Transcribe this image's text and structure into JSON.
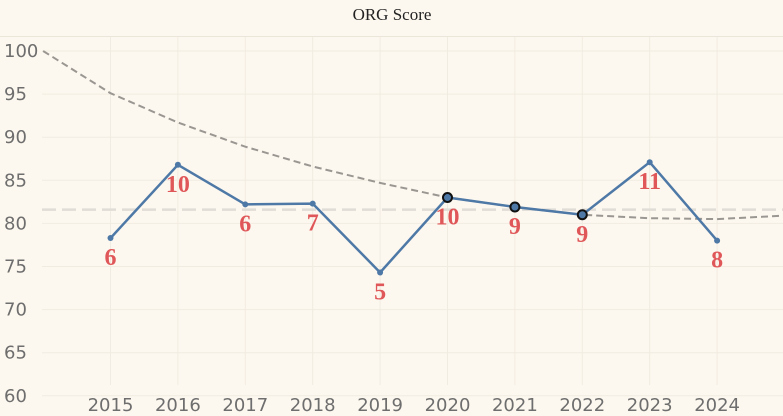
{
  "chart_data": {
    "type": "line",
    "title": "ORG Score",
    "xlabel": "",
    "ylabel": "",
    "x": [
      "2015",
      "2016",
      "2017",
      "2018",
      "2019",
      "2020",
      "2021",
      "2022",
      "2023",
      "2024"
    ],
    "y_ticks": [
      "100",
      "95",
      "90",
      "85",
      "80",
      "75",
      "70",
      "65",
      "60"
    ],
    "ylim": [
      58,
      102
    ],
    "grid": true,
    "series": [
      {
        "values": [
          78.3,
          86.8,
          82.2,
          82.3,
          74.3,
          83.0,
          81.9,
          81.0,
          87.1,
          78.0
        ],
        "highlighted": [
          false,
          false,
          false,
          false,
          false,
          true,
          true,
          true,
          false,
          false
        ],
        "color": "#4e79a7"
      }
    ],
    "data_labels": [
      "6",
      "10",
      "6",
      "7",
      "5",
      "10",
      "9",
      "9",
      "11",
      "8"
    ],
    "label_color": "#e05759",
    "reference_line": {
      "value": 81.6,
      "color": "#e0dcd6",
      "style": "dashed"
    },
    "trend_line": {
      "color": "#9a9792",
      "style": "dashed",
      "points": [
        [
          2014,
          100.0
        ],
        [
          2015,
          95.1
        ],
        [
          2016,
          91.7
        ],
        [
          2017,
          88.9
        ],
        [
          2018,
          86.6
        ],
        [
          2019,
          84.7
        ],
        [
          2020,
          83.0
        ],
        [
          2021,
          81.9
        ],
        [
          2022,
          81.0
        ],
        [
          2023,
          80.6
        ],
        [
          2024,
          80.5
        ],
        [
          2025,
          80.9
        ]
      ]
    }
  }
}
